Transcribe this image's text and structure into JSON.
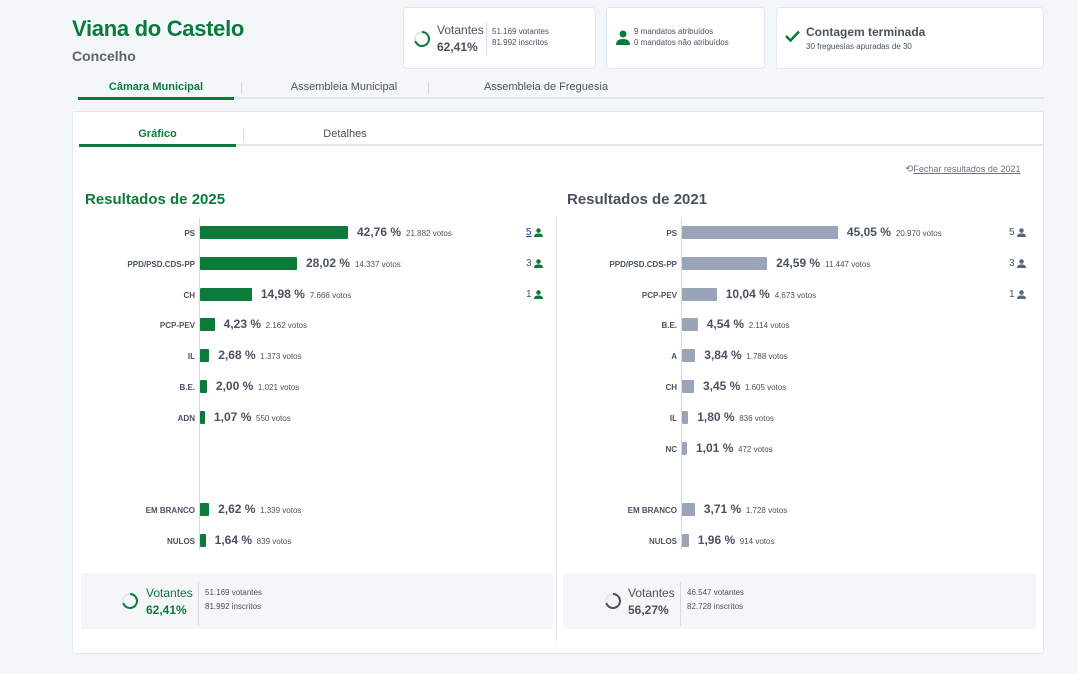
{
  "header": {
    "title": "Viana do Castelo",
    "subtitle": "Concelho"
  },
  "cards": {
    "turnout": {
      "label": "Votantes",
      "pct": "62,41%",
      "pct_value": 62.41,
      "voters": "51.169 votantes",
      "registered": "81.992 inscritos"
    },
    "mandates": {
      "icon": "person-icon",
      "assigned": "9 mandatos atribuídos",
      "unassigned": "0 mandatos não atribuídos"
    },
    "count": {
      "icon": "check-icon",
      "title": "Contagem terminada",
      "detail": "30 freguesias apuradas de 30"
    }
  },
  "main_tabs": [
    {
      "label": "Câmara Municipal",
      "active": true
    },
    {
      "label": "Assembleia Municipal",
      "active": false
    },
    {
      "label": "Assembleia de Freguesia",
      "active": false
    }
  ],
  "sub_tabs": [
    {
      "label": "Gráfico",
      "active": true
    },
    {
      "label": "Detalhes",
      "active": false
    }
  ],
  "close_link": {
    "icon": "undo-icon",
    "label": "Fechar resultados de 2021"
  },
  "colors": {
    "green": "#0b7a3b",
    "grey_bar": "#9aa4b8",
    "seat_blue": "#1b3e8c"
  },
  "chart_data": [
    {
      "type": "bar",
      "orientation": "horizontal",
      "title": "Resultados de 2025",
      "xlim": [
        0,
        45
      ],
      "categories": [
        "PS",
        "PPD/PSD.CDS-PP",
        "CH",
        "PCP-PEV",
        "IL",
        "B.E.",
        "ADN",
        "",
        "",
        "EM BRANCO",
        "NULOS"
      ],
      "values": [
        42.76,
        28.02,
        14.98,
        4.23,
        2.68,
        2.0,
        1.07,
        null,
        null,
        2.62,
        1.64
      ],
      "pct_labels": [
        "42,76 %",
        "28,02 %",
        "14,98 %",
        "4,23 %",
        "2,68 %",
        "2,00 %",
        "1,07 %",
        "",
        "",
        "2,62 %",
        "1,64 %"
      ],
      "votes": [
        "21.882 votos",
        "14.337 votos",
        "7.666 votos",
        "2.162 votos",
        "1.373 votos",
        "1.021 votos",
        "550 votos",
        "",
        "",
        "1.339 votos",
        "839 votos"
      ],
      "seats": [
        "5",
        "3",
        "1",
        "",
        "",
        "",
        "",
        "",
        "",
        "",
        ""
      ],
      "summary": {
        "label": "Votantes",
        "pct": "62,41%",
        "pct_value": 62.41,
        "voters": "51.169 votantes",
        "registered": "81.992 inscritos"
      }
    },
    {
      "type": "bar",
      "orientation": "horizontal",
      "title": "Resultados de 2021",
      "xlim": [
        0,
        45
      ],
      "categories": [
        "PS",
        "PPD/PSD.CDS-PP",
        "PCP-PEV",
        "B.E.",
        "A",
        "CH",
        "IL",
        "NC",
        "",
        "EM BRANCO",
        "NULOS"
      ],
      "values": [
        45.05,
        24.59,
        10.04,
        4.54,
        3.84,
        3.45,
        1.8,
        1.01,
        null,
        3.71,
        1.96
      ],
      "pct_labels": [
        "45,05 %",
        "24,59 %",
        "10,04 %",
        "4,54 %",
        "3,84 %",
        "3,45 %",
        "1,80 %",
        "1,01 %",
        "",
        "3,71 %",
        "1,96 %"
      ],
      "votes": [
        "20.970 votos",
        "11.447 votos",
        "4.673 votos",
        "2.114 votos",
        "1.788 votos",
        "1.605 votos",
        "836 votos",
        "472 votos",
        "",
        "1.728 votos",
        "914 votos"
      ],
      "seats": [
        "5",
        "3",
        "1",
        "",
        "",
        "",
        "",
        "",
        "",
        "",
        ""
      ],
      "summary": {
        "label": "Votantes",
        "pct": "56,27%",
        "pct_value": 56.27,
        "voters": "46.547 votantes",
        "registered": "82.728 inscritos"
      }
    }
  ]
}
